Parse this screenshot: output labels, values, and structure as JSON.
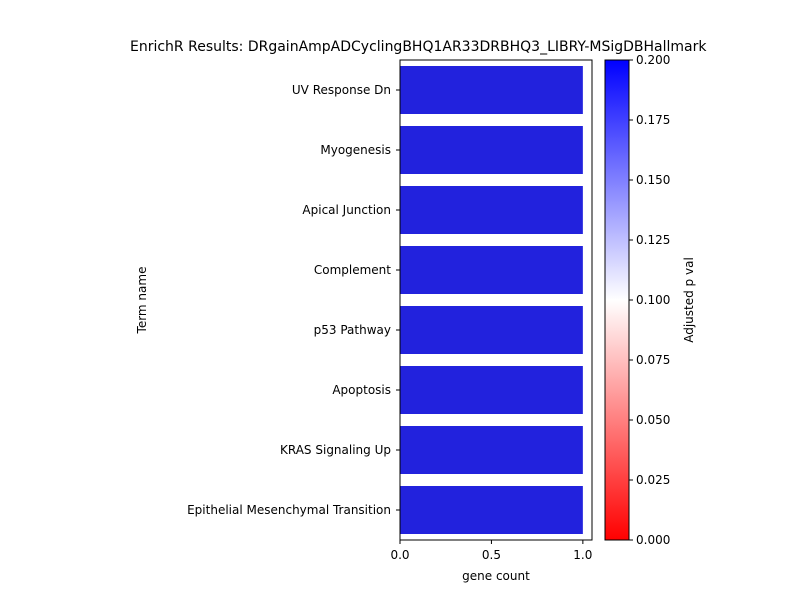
{
  "chart_data": {
    "type": "bar",
    "orientation": "horizontal",
    "title": "EnrichR Results: DRgainAmpADCyclingBHQ1AR33DRBHQ3_LIBRY-MSigDBHallmark",
    "xlabel": "gene count",
    "ylabel": "Term name",
    "categories": [
      "UV Response Dn",
      "Myogenesis",
      "Apical Junction",
      "Complement",
      "p53 Pathway",
      "Apoptosis",
      "KRAS Signaling Up",
      "Epithelial Mesenchymal Transition"
    ],
    "values": [
      1,
      1,
      1,
      1,
      1,
      1,
      1,
      1
    ],
    "xlim": [
      0,
      1.05
    ],
    "xticks": [
      "0.0",
      "0.5",
      "1.0"
    ],
    "bar_color": "#2222dd",
    "colorbar": {
      "label": "Adjusted p val",
      "range": [
        0,
        0.2
      ],
      "ticks": [
        "0.000",
        "0.025",
        "0.050",
        "0.075",
        "0.100",
        "0.125",
        "0.150",
        "0.175",
        "0.200"
      ],
      "colormap": [
        "#ff0000",
        "#ffffff",
        "#0000ff"
      ]
    }
  }
}
